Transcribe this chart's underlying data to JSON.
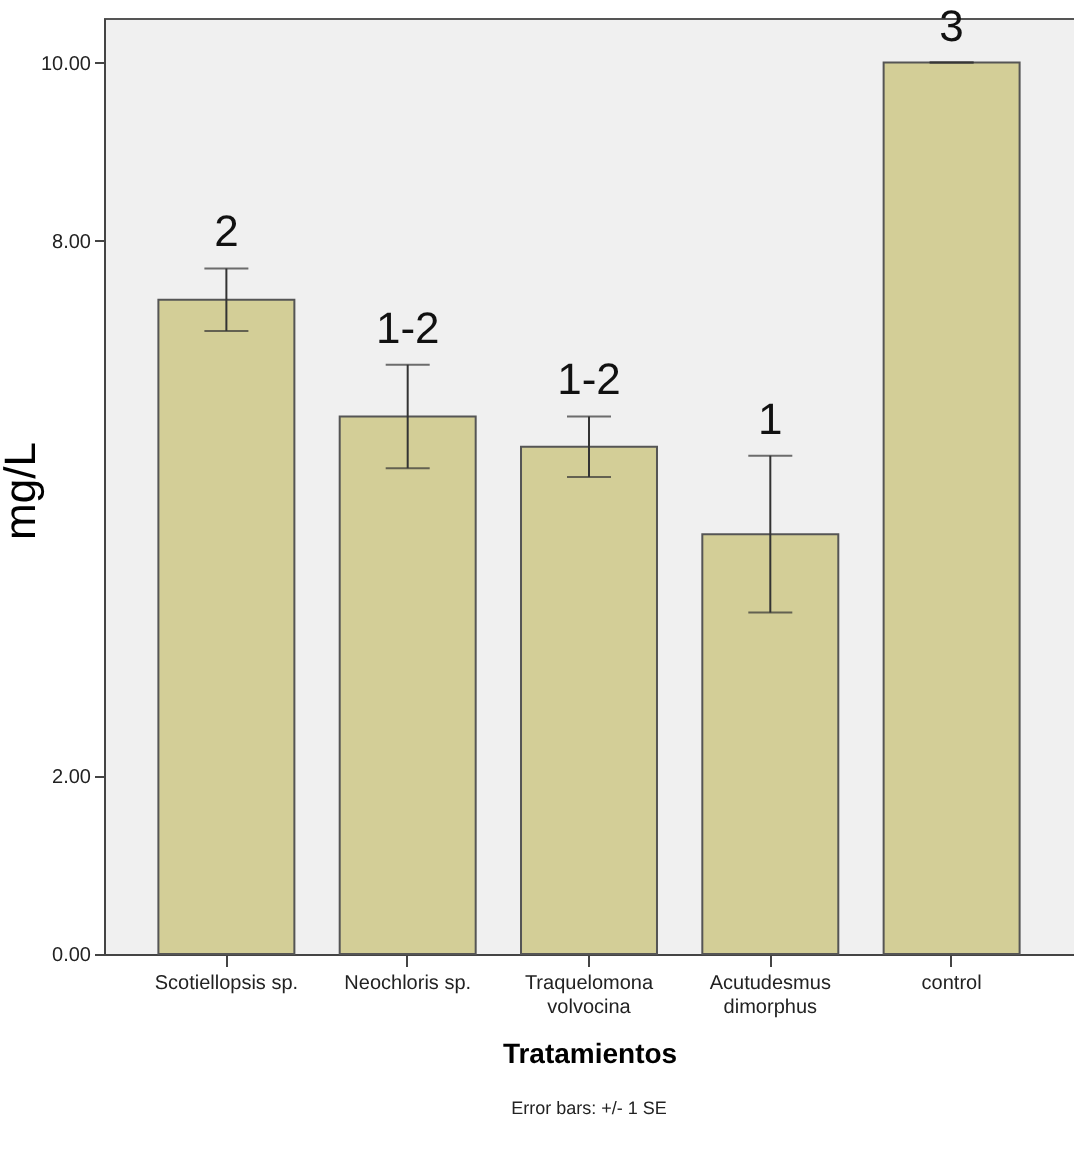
{
  "chart_data": {
    "type": "bar",
    "categories": [
      "Scotiellopsis sp.",
      "Neochloris sp.",
      "Traquelomona volvocina",
      "Acutudesmus dimorphus",
      "control"
    ],
    "values": [
      7.34,
      6.03,
      5.69,
      4.71,
      10.0
    ],
    "errors": [
      0.35,
      0.58,
      0.34,
      0.88,
      0
    ],
    "color": "#d3ce97",
    "xlabel": "Tratamientos",
    "ylabel": "mg/L",
    "ylim": [
      0,
      10.5
    ],
    "yticks": [
      {
        "value": 0,
        "label": "0.00"
      },
      {
        "value": 2,
        "label": "2.00"
      },
      {
        "value": 8,
        "label": "8.00"
      },
      {
        "value": 10,
        "label": "10.00"
      }
    ],
    "grid": false,
    "annotations": [
      "2",
      "1-2",
      "1-2",
      "1",
      "3",
      "Error bars: +/- 1 SE"
    ]
  }
}
